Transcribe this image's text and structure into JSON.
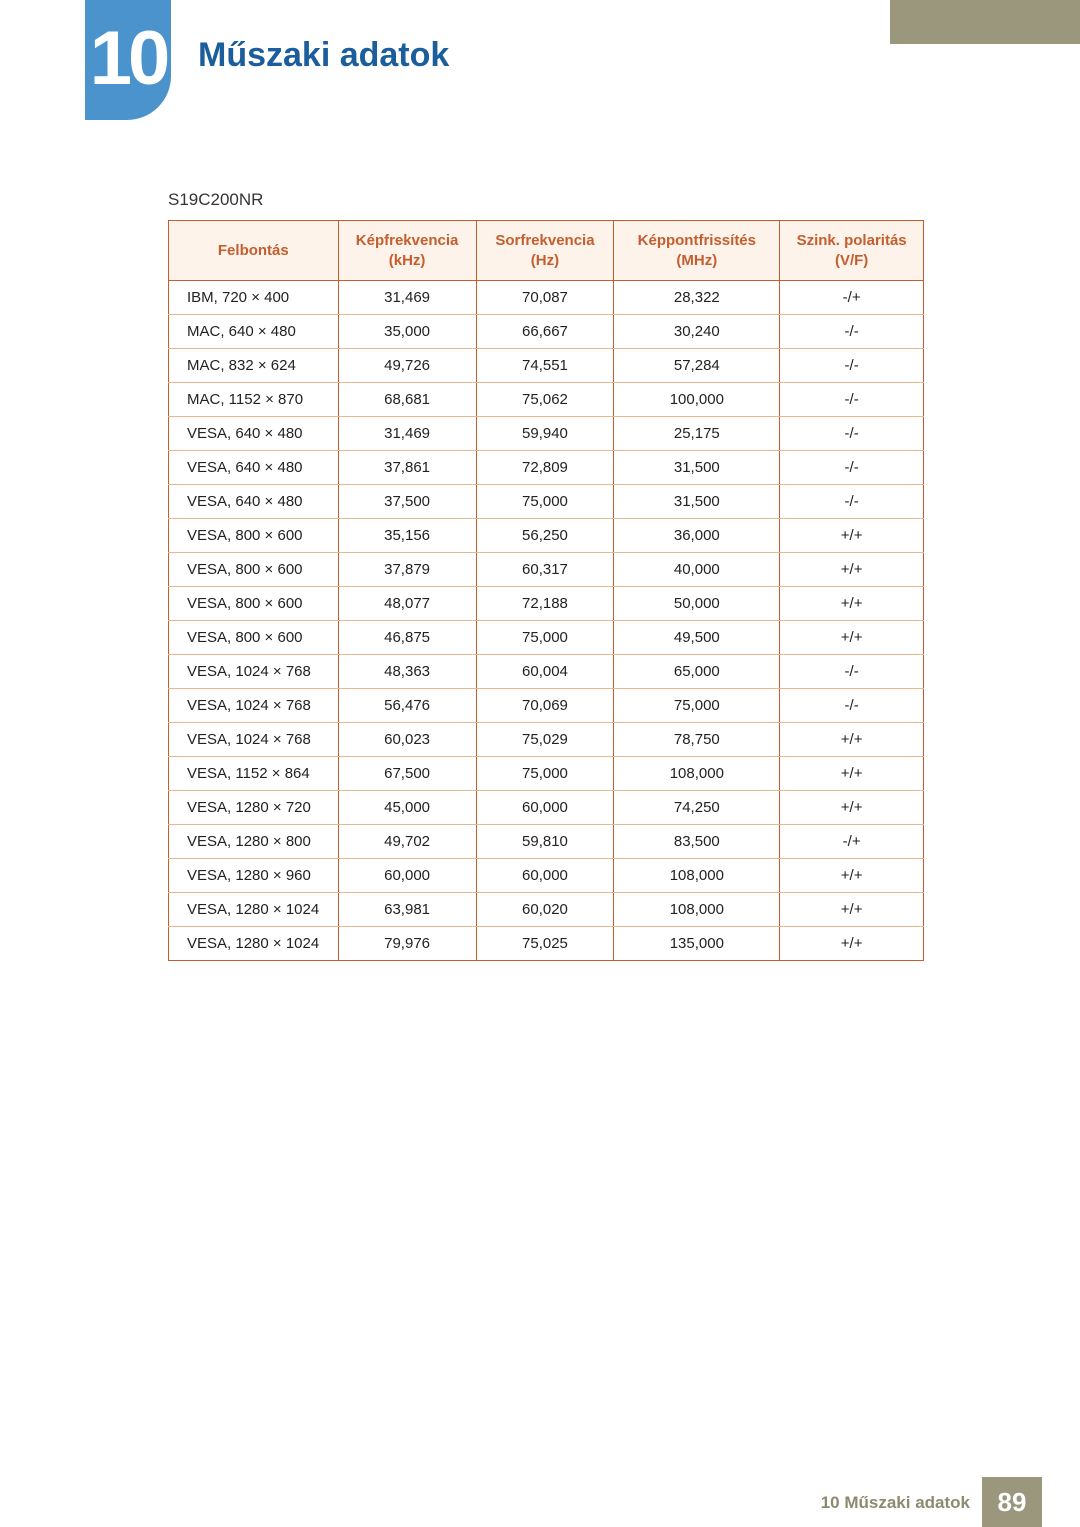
{
  "chapter": {
    "number": "10",
    "title": "Műszaki adatok"
  },
  "model": "S19C200NR",
  "colors": {
    "accent": "#c45e2e",
    "header_blue": "#1b5e9b",
    "chapter_tab_bg": "#4a93cd",
    "footer_band": "#9a977c",
    "row_border": "#e6ba90",
    "header_row_bg": "#fdf3ea",
    "page_bg": "#ffffff",
    "text": "#343434",
    "footer_text": "#8d8a70"
  },
  "table": {
    "type": "table",
    "headers": [
      {
        "line1": "Felbontás",
        "line2": ""
      },
      {
        "line1": "Képfrekvencia",
        "line2": "(kHz)"
      },
      {
        "line1": "Sorfrekvencia",
        "line2": "(Hz)"
      },
      {
        "line1": "Képpontfrissítés",
        "line2": "(MHz)"
      },
      {
        "line1": "Szink. polaritás",
        "line2": "(V/F)"
      }
    ],
    "rows": [
      [
        "IBM, 720 × 400",
        "31,469",
        "70,087",
        "28,322",
        "-/+"
      ],
      [
        "MAC, 640 × 480",
        "35,000",
        "66,667",
        "30,240",
        "-/-"
      ],
      [
        "MAC, 832 × 624",
        "49,726",
        "74,551",
        "57,284",
        "-/-"
      ],
      [
        "MAC, 1152 × 870",
        "68,681",
        "75,062",
        "100,000",
        "-/-"
      ],
      [
        "VESA, 640 × 480",
        "31,469",
        "59,940",
        "25,175",
        "-/-"
      ],
      [
        "VESA, 640 × 480",
        "37,861",
        "72,809",
        "31,500",
        "-/-"
      ],
      [
        "VESA, 640 × 480",
        "37,500",
        "75,000",
        "31,500",
        "-/-"
      ],
      [
        "VESA, 800 × 600",
        "35,156",
        "56,250",
        "36,000",
        "+/+"
      ],
      [
        "VESA, 800 × 600",
        "37,879",
        "60,317",
        "40,000",
        "+/+"
      ],
      [
        "VESA, 800 × 600",
        "48,077",
        "72,188",
        "50,000",
        "+/+"
      ],
      [
        "VESA, 800 × 600",
        "46,875",
        "75,000",
        "49,500",
        "+/+"
      ],
      [
        "VESA, 1024 × 768",
        "48,363",
        "60,004",
        "65,000",
        "-/-"
      ],
      [
        "VESA, 1024 × 768",
        "56,476",
        "70,069",
        "75,000",
        "-/-"
      ],
      [
        "VESA, 1024 × 768",
        "60,023",
        "75,029",
        "78,750",
        "+/+"
      ],
      [
        "VESA, 1152 × 864",
        "67,500",
        "75,000",
        "108,000",
        "+/+"
      ],
      [
        "VESA, 1280 × 720",
        "45,000",
        "60,000",
        "74,250",
        "+/+"
      ],
      [
        "VESA, 1280 × 800",
        "49,702",
        "59,810",
        "83,500",
        "-/+"
      ],
      [
        "VESA, 1280 × 960",
        "60,000",
        "60,000",
        "108,000",
        "+/+"
      ],
      [
        "VESA, 1280 × 1024",
        "63,981",
        "60,020",
        "108,000",
        "+/+"
      ],
      [
        "VESA, 1280 × 1024",
        "79,976",
        "75,025",
        "135,000",
        "+/+"
      ]
    ]
  },
  "footer": {
    "text": "10 Műszaki adatok",
    "page_number": "89"
  }
}
